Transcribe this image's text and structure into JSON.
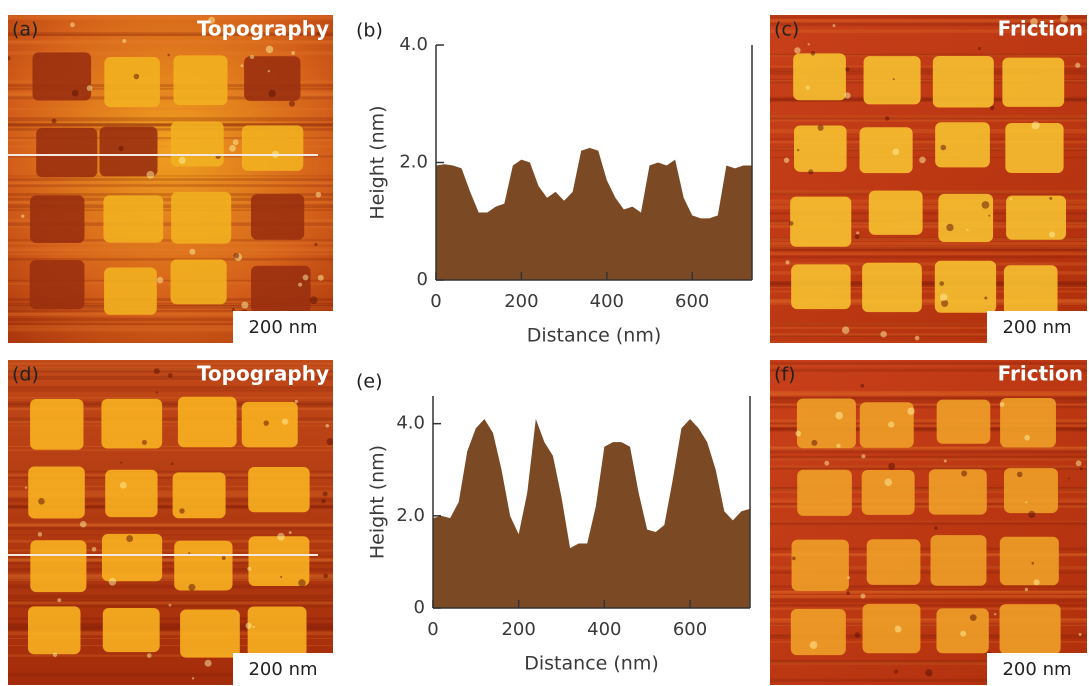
{
  "panels": [
    {
      "label": "(a)",
      "title": "Topography",
      "scale_bar": "200 nm"
    },
    {
      "label": "(c)",
      "title": "Friction",
      "scale_bar": "200 nm"
    },
    {
      "label": "(d)",
      "title": "Topography",
      "scale_bar": "200 nm"
    },
    {
      "label": "(f)",
      "title": "Friction",
      "scale_bar": "200 nm"
    }
  ],
  "chart_data": [
    {
      "type": "area",
      "label": "(b)",
      "xlabel": "Distance (nm)",
      "ylabel": "Height (nm)",
      "color": "#7b4a25",
      "x": [
        0,
        20,
        40,
        60,
        80,
        100,
        120,
        140,
        160,
        180,
        200,
        220,
        240,
        260,
        280,
        300,
        320,
        340,
        360,
        380,
        400,
        420,
        440,
        460,
        480,
        500,
        520,
        540,
        560,
        580,
        600,
        620,
        640,
        660,
        680,
        700,
        720,
        740
      ],
      "values": [
        1.95,
        1.97,
        1.95,
        1.9,
        1.5,
        1.15,
        1.15,
        1.25,
        1.3,
        1.95,
        2.05,
        2.0,
        1.6,
        1.4,
        1.5,
        1.35,
        1.5,
        2.2,
        2.25,
        2.2,
        1.7,
        1.4,
        1.2,
        1.25,
        1.15,
        1.95,
        2.0,
        1.95,
        2.05,
        1.4,
        1.1,
        1.05,
        1.05,
        1.1,
        1.95,
        1.9,
        1.95,
        1.95
      ],
      "xlim": [
        0,
        740
      ],
      "ylim": [
        0,
        4
      ],
      "xticks": [
        0,
        200,
        400,
        600
      ],
      "yticks": [
        0,
        {
          "value": 2,
          "label": "2.0"
        },
        {
          "value": 4,
          "label": "4.0"
        }
      ]
    },
    {
      "type": "area",
      "label": "(e)",
      "xlabel": "Distance (nm)",
      "ylabel": "Height (nm)",
      "color": "#7b4a25",
      "x": [
        0,
        20,
        40,
        60,
        80,
        100,
        120,
        140,
        160,
        180,
        200,
        220,
        240,
        260,
        280,
        300,
        320,
        340,
        360,
        380,
        400,
        420,
        440,
        460,
        480,
        500,
        520,
        540,
        560,
        580,
        600,
        620,
        640,
        660,
        680,
        700,
        720,
        740
      ],
      "values": [
        1.95,
        2.0,
        1.95,
        2.3,
        3.4,
        3.9,
        4.1,
        3.8,
        3.0,
        2.0,
        1.6,
        2.5,
        4.1,
        3.6,
        3.3,
        2.4,
        1.3,
        1.4,
        1.4,
        2.2,
        3.5,
        3.6,
        3.6,
        3.5,
        2.5,
        1.7,
        1.65,
        1.8,
        2.8,
        3.9,
        4.1,
        3.9,
        3.6,
        3.0,
        2.1,
        1.9,
        2.1,
        2.15
      ],
      "xlim": [
        0,
        740
      ],
      "ylim": [
        0,
        4.6
      ],
      "xticks": [
        0,
        200,
        400,
        600
      ],
      "yticks": [
        0,
        {
          "value": 2,
          "label": "2.0"
        },
        {
          "value": 4,
          "label": "4.0"
        }
      ]
    }
  ]
}
